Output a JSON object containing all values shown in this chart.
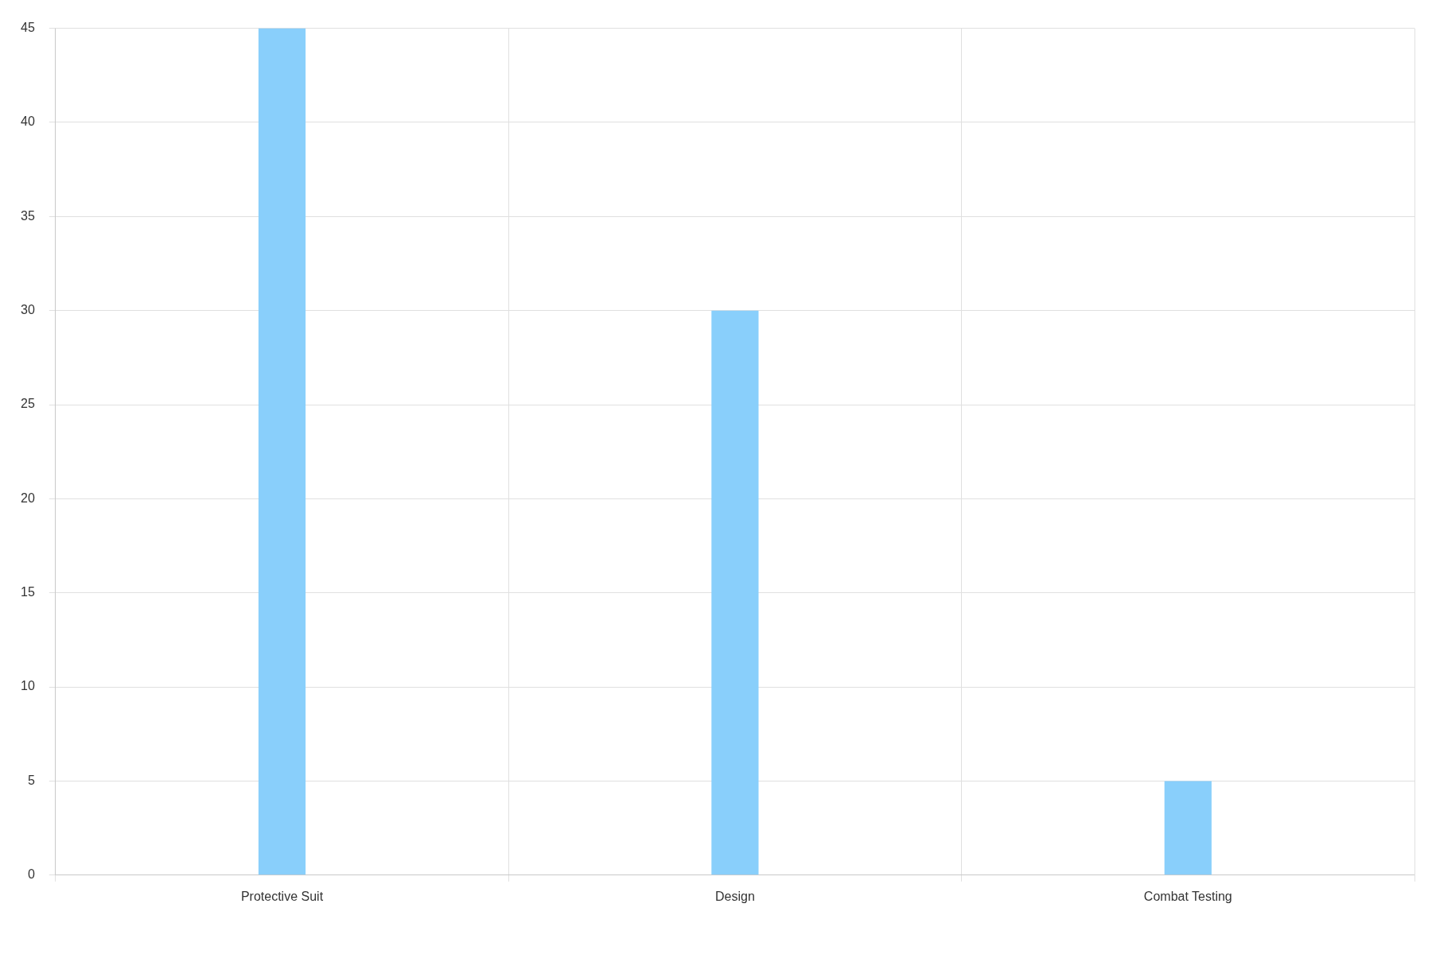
{
  "chart_data": {
    "type": "bar",
    "categories": [
      "Protective Suit",
      "Design",
      "Combat Testing"
    ],
    "values": [
      45,
      30,
      5
    ],
    "color": "#89cffb",
    "ylim": [
      0,
      45
    ],
    "yticks": [
      0,
      5,
      10,
      15,
      20,
      25,
      30,
      35,
      40,
      45
    ],
    "grid": true,
    "legend": false
  }
}
